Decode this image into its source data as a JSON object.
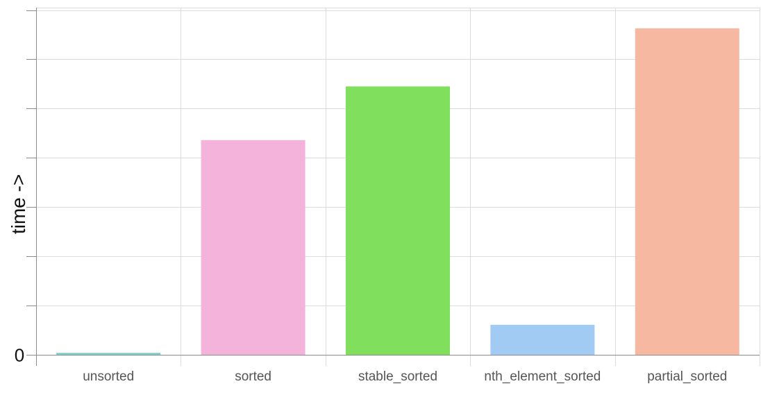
{
  "chart_data": {
    "type": "bar",
    "title": "",
    "xlabel": "",
    "ylabel": "time ->",
    "categories": [
      "unsorted",
      "sorted",
      "stable_sorted",
      "nth_element_sorted",
      "partial_sorted"
    ],
    "values": [
      0.4,
      43.6,
      54.5,
      6.1,
      66.3
    ],
    "colors": [
      "#7fcfca",
      "#f4b3da",
      "#80df5c",
      "#a2cbf4",
      "#f6b8a1"
    ],
    "ylim": [
      0,
      70.5
    ],
    "y_ticks": [
      0,
      10,
      20,
      30,
      40,
      50,
      60,
      70
    ],
    "y_tick_labels": [
      "0",
      "",
      "",
      "",
      "",
      "",
      "",
      ""
    ],
    "grid": true,
    "legend": "none"
  }
}
